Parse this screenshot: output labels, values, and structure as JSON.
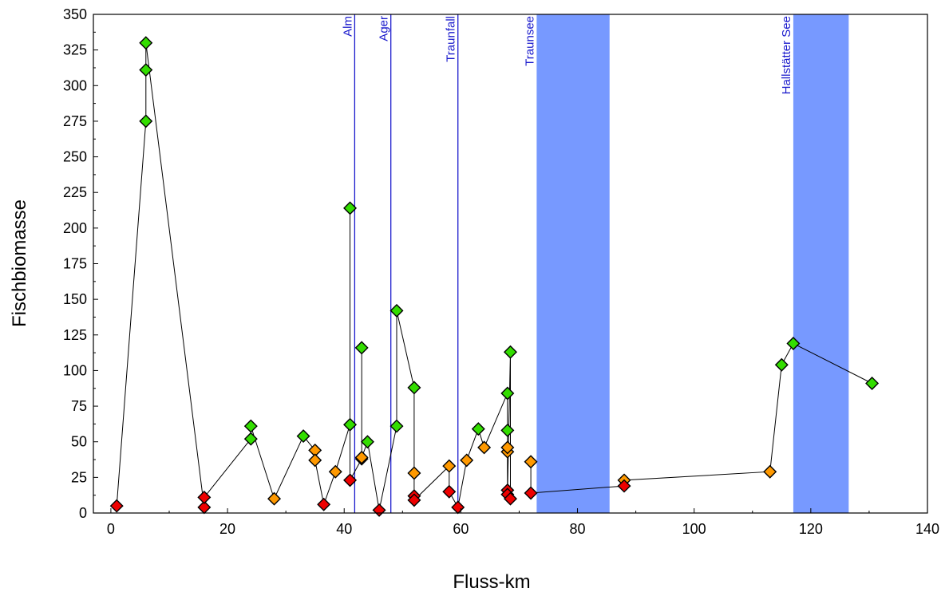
{
  "chart_data": {
    "type": "scatter",
    "xlabel": "Fluss-km",
    "ylabel": "Fischbiomasse",
    "xlim": [
      -3,
      140
    ],
    "ylim": [
      0,
      350
    ],
    "x_ticks": [
      0,
      20,
      40,
      60,
      80,
      100,
      120,
      140
    ],
    "y_ticks": [
      0,
      25,
      50,
      75,
      100,
      125,
      150,
      175,
      200,
      225,
      250,
      275,
      300,
      325,
      350
    ],
    "grid": false,
    "legend": "none",
    "colors": {
      "line": "#000000",
      "marker_green": "#33dd00",
      "marker_orange": "#ff9900",
      "marker_red": "#ee0000",
      "vline": "#1a1acc",
      "band": "#7799ff",
      "annotation": "#1a1acc"
    },
    "annotations": [
      {
        "label": "Alm",
        "x": 41.8
      },
      {
        "label": "Ager",
        "x": 48
      },
      {
        "label": "Traunfall",
        "x": 59.5
      },
      {
        "label": "Traunsee",
        "x": 73
      }
    ],
    "bands": [
      {
        "label": "Traunsee",
        "x_start": 73,
        "x_end": 85.5
      },
      {
        "label": "Hallstätter See",
        "x_start": 117,
        "x_end": 126.5
      }
    ],
    "segments": [
      [
        [
          1,
          5
        ],
        [
          6,
          275
        ],
        [
          6,
          311
        ],
        [
          6,
          330
        ],
        [
          16,
          4
        ],
        [
          16,
          11
        ],
        [
          24,
          52
        ],
        [
          24,
          61
        ],
        [
          28,
          10
        ],
        [
          33,
          54
        ],
        [
          35,
          44
        ],
        [
          35,
          37
        ],
        [
          36.5,
          6
        ],
        [
          38.5,
          29
        ],
        [
          41,
          62
        ],
        [
          41,
          214
        ],
        [
          41,
          23
        ],
        [
          43,
          38
        ],
        [
          43,
          116
        ],
        [
          43,
          39
        ],
        [
          44,
          50
        ],
        [
          46,
          2
        ],
        [
          49,
          61
        ],
        [
          49,
          142
        ],
        [
          52,
          88
        ],
        [
          52,
          28
        ],
        [
          52,
          12
        ],
        [
          52,
          9
        ],
        [
          58,
          33
        ],
        [
          58,
          15
        ],
        [
          59.5,
          4
        ],
        [
          61,
          37
        ],
        [
          63,
          59
        ],
        [
          64,
          46
        ],
        [
          68,
          84
        ],
        [
          68,
          58
        ],
        [
          68,
          43
        ],
        [
          68,
          46
        ],
        [
          68,
          16
        ],
        [
          68,
          13
        ],
        [
          68.5,
          113
        ],
        [
          68.5,
          10
        ]
      ],
      [
        [
          72,
          36
        ],
        [
          72,
          14
        ],
        [
          88,
          19
        ],
        [
          88,
          23
        ],
        [
          113,
          29
        ],
        [
          115,
          104
        ],
        [
          117,
          119
        ],
        [
          130.5,
          91
        ]
      ]
    ],
    "series": [
      {
        "marker": "green",
        "points": [
          [
            6,
            330
          ],
          [
            6,
            311
          ],
          [
            6,
            275
          ],
          [
            24,
            61
          ],
          [
            24,
            52
          ],
          [
            33,
            54
          ],
          [
            41,
            214
          ],
          [
            41,
            62
          ],
          [
            43,
            116
          ],
          [
            44,
            50
          ],
          [
            49,
            142
          ],
          [
            49,
            61
          ],
          [
            52,
            88
          ],
          [
            63,
            59
          ],
          [
            68,
            84
          ],
          [
            68,
            58
          ],
          [
            68.5,
            113
          ],
          [
            115,
            104
          ],
          [
            117,
            119
          ],
          [
            130.5,
            91
          ]
        ]
      },
      {
        "marker": "orange",
        "points": [
          [
            28,
            10
          ],
          [
            35,
            44
          ],
          [
            35,
            37
          ],
          [
            38.5,
            29
          ],
          [
            43,
            38
          ],
          [
            43,
            39
          ],
          [
            52,
            28
          ],
          [
            58,
            33
          ],
          [
            61,
            37
          ],
          [
            64,
            46
          ],
          [
            68,
            43
          ],
          [
            68,
            46
          ],
          [
            72,
            36
          ],
          [
            88,
            23
          ],
          [
            113,
            29
          ]
        ]
      },
      {
        "marker": "red",
        "points": [
          [
            1,
            5
          ],
          [
            16,
            4
          ],
          [
            16,
            11
          ],
          [
            36.5,
            6
          ],
          [
            41,
            23
          ],
          [
            46,
            2
          ],
          [
            52,
            12
          ],
          [
            52,
            9
          ],
          [
            58,
            15
          ],
          [
            59.5,
            4
          ],
          [
            68,
            16
          ],
          [
            68,
            13
          ],
          [
            68.5,
            10
          ],
          [
            72,
            14
          ],
          [
            88,
            19
          ]
        ]
      }
    ]
  }
}
